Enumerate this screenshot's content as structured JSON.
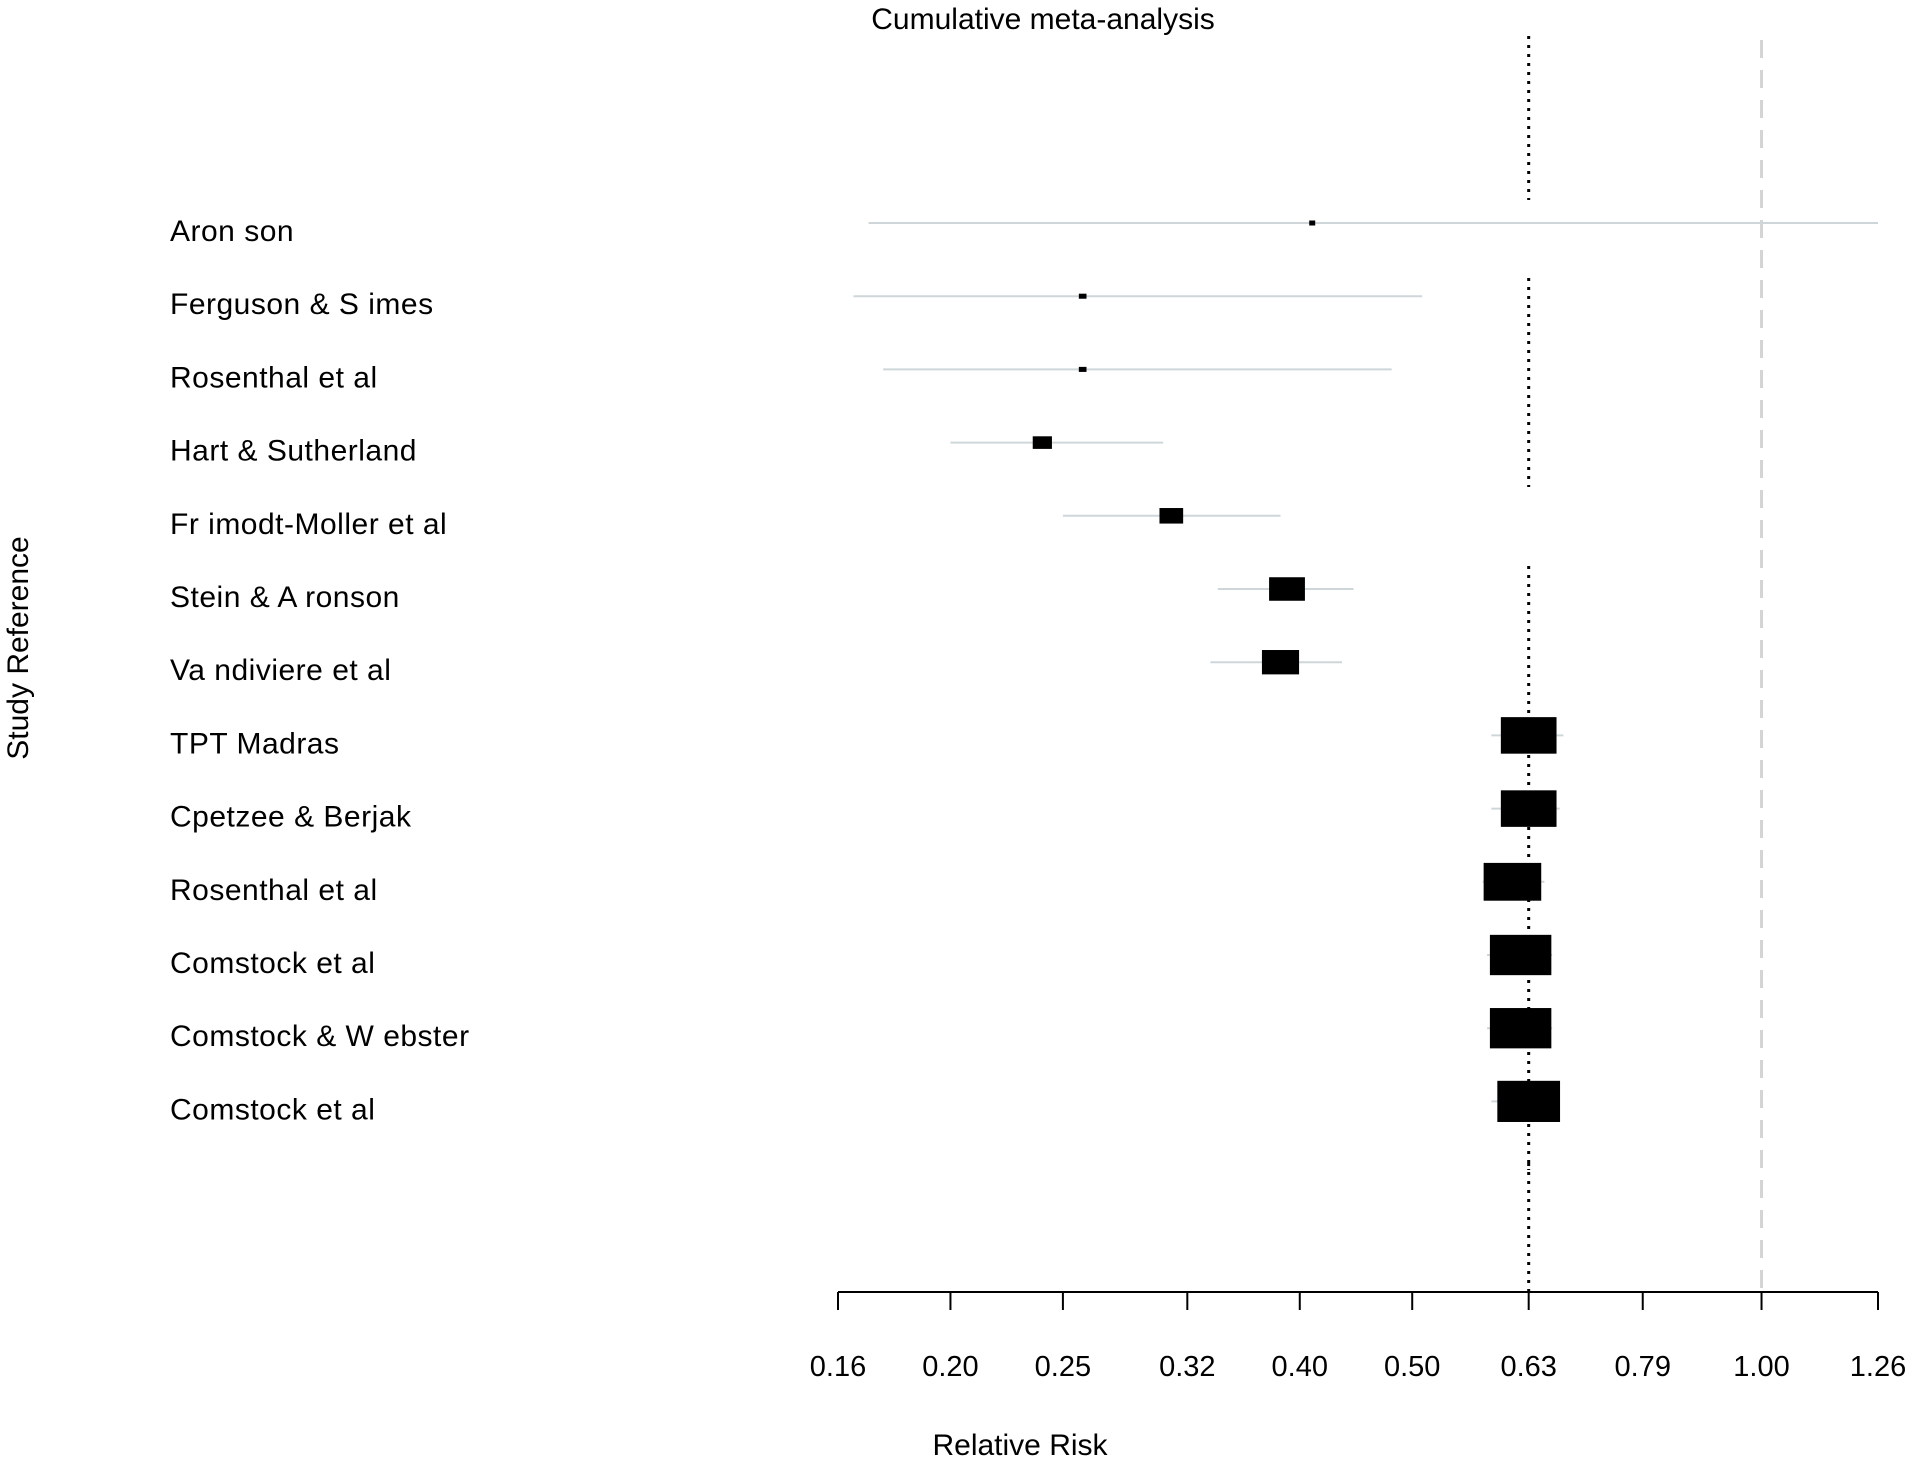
{
  "chart_data": {
    "type": "forest",
    "title": "Cumulative meta-analysis",
    "xlabel": "Relative Risk",
    "ylabel": "Study Reference",
    "x_scale": "log",
    "xlim": [
      0.16,
      1.26
    ],
    "x_ticks": [
      "0.16",
      "0.20",
      "0.25",
      "0.32",
      "0.40",
      "0.50",
      "0.63",
      "0.79",
      "1.00",
      "1.26"
    ],
    "x_tick_values": [
      0.16,
      0.2,
      0.25,
      0.32,
      0.4,
      0.5,
      0.63,
      0.79,
      1.0,
      1.26
    ],
    "reference_line": 1.0,
    "pooled_estimate_line": 0.63,
    "studies": [
      {
        "label": "Aron son",
        "est": 0.41,
        "lo": 0.17,
        "hi": 1.26,
        "weight": 0.05
      },
      {
        "label": "Ferguson & S imes",
        "est": 0.26,
        "lo": 0.165,
        "hi": 0.51,
        "weight": 0.12
      },
      {
        "label": "Rosenthal et al",
        "est": 0.26,
        "lo": 0.175,
        "hi": 0.48,
        "weight": 0.12
      },
      {
        "label": "Hart & Sutherland",
        "est": 0.24,
        "lo": 0.2,
        "hi": 0.305,
        "weight": 0.3
      },
      {
        "label": "Fr imodt-Moller et al",
        "est": 0.31,
        "lo": 0.25,
        "hi": 0.385,
        "weight": 0.37
      },
      {
        "label": "Stein & A ronson",
        "est": 0.39,
        "lo": 0.34,
        "hi": 0.445,
        "weight": 0.56
      },
      {
        "label": "Va ndiviere et al",
        "est": 0.385,
        "lo": 0.335,
        "hi": 0.435,
        "weight": 0.58
      },
      {
        "label": "TPT  Madras",
        "est": 0.63,
        "lo": 0.585,
        "hi": 0.675,
        "weight": 0.87
      },
      {
        "label": "Cpetzee & Berjak",
        "est": 0.63,
        "lo": 0.585,
        "hi": 0.67,
        "weight": 0.87
      },
      {
        "label": "Rosenthal et al",
        "est": 0.61,
        "lo": 0.575,
        "hi": 0.65,
        "weight": 0.9
      },
      {
        "label": "Comstock et al",
        "est": 0.62,
        "lo": 0.58,
        "hi": 0.66,
        "weight": 0.96
      },
      {
        "label": "Comstock & W ebster",
        "est": 0.62,
        "lo": 0.58,
        "hi": 0.66,
        "weight": 0.96
      },
      {
        "label": "Comstock et al",
        "est": 0.63,
        "lo": 0.585,
        "hi": 0.67,
        "weight": 0.98
      }
    ],
    "colors": {
      "box": "#000000",
      "ci_line": "#cfd6da",
      "axis": "#000000",
      "pooled_line": "#000000",
      "reference_line": "#d4d4d4"
    }
  }
}
